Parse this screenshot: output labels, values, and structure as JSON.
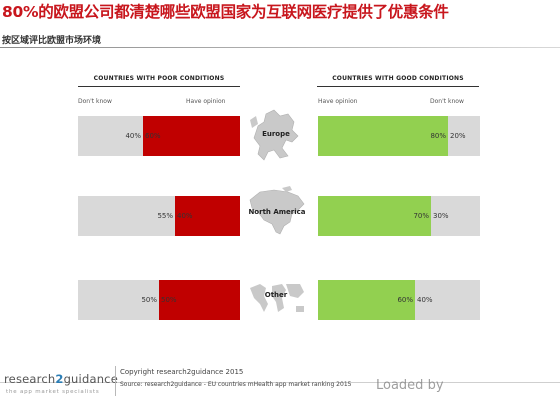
{
  "title": "80%的欧盟公司都清楚哪些欧盟国家为互联网医疗提供了优惠条件",
  "subtitle": "按区域评比欧盟市场环境",
  "colors": {
    "poor": "#c00000",
    "good": "#92d050",
    "neutral": "#d9d9d9",
    "title": "#c8161d"
  },
  "chart_data": [
    {
      "type": "bar",
      "title": "COUNTRIES WITH POOR CONDITIONS",
      "stacked": true,
      "orientation": "horizontal",
      "axis_labels": {
        "left": "Don't know",
        "right": "Have opinion"
      },
      "categories": [
        "Europe",
        "North America",
        "Other"
      ],
      "series": [
        {
          "name": "Don't know",
          "values": [
            40,
            55,
            50
          ],
          "labels": [
            "40%",
            "55%",
            "50%"
          ]
        },
        {
          "name": "Have opinion",
          "values": [
            60,
            40,
            50
          ],
          "labels": [
            "60%",
            "40%",
            "50%"
          ]
        }
      ]
    },
    {
      "type": "bar",
      "title": "COUNTRIES WITH GOOD CONDITIONS",
      "stacked": true,
      "orientation": "horizontal",
      "axis_labels": {
        "left": "Have opinion",
        "right": "Don't know"
      },
      "categories": [
        "Europe",
        "North America",
        "Other"
      ],
      "series": [
        {
          "name": "Have opinion",
          "values": [
            80,
            70,
            60
          ],
          "labels": [
            "80%",
            "70%",
            "60%"
          ]
        },
        {
          "name": "Don't know",
          "values": [
            20,
            30,
            40
          ],
          "labels": [
            "20%",
            "30%",
            "40%"
          ]
        }
      ]
    }
  ],
  "regions": [
    "Europe",
    "North America",
    "Other"
  ],
  "footer": {
    "logo_a": "research",
    "logo_b": "2",
    "logo_c": "guidance",
    "tagline": "the app market specialists",
    "copyright": "Copyright research2guidance 2015",
    "source": "Source: research2guidance - EU countries mHealth app market ranking 2015",
    "watermark": "Loaded by"
  }
}
